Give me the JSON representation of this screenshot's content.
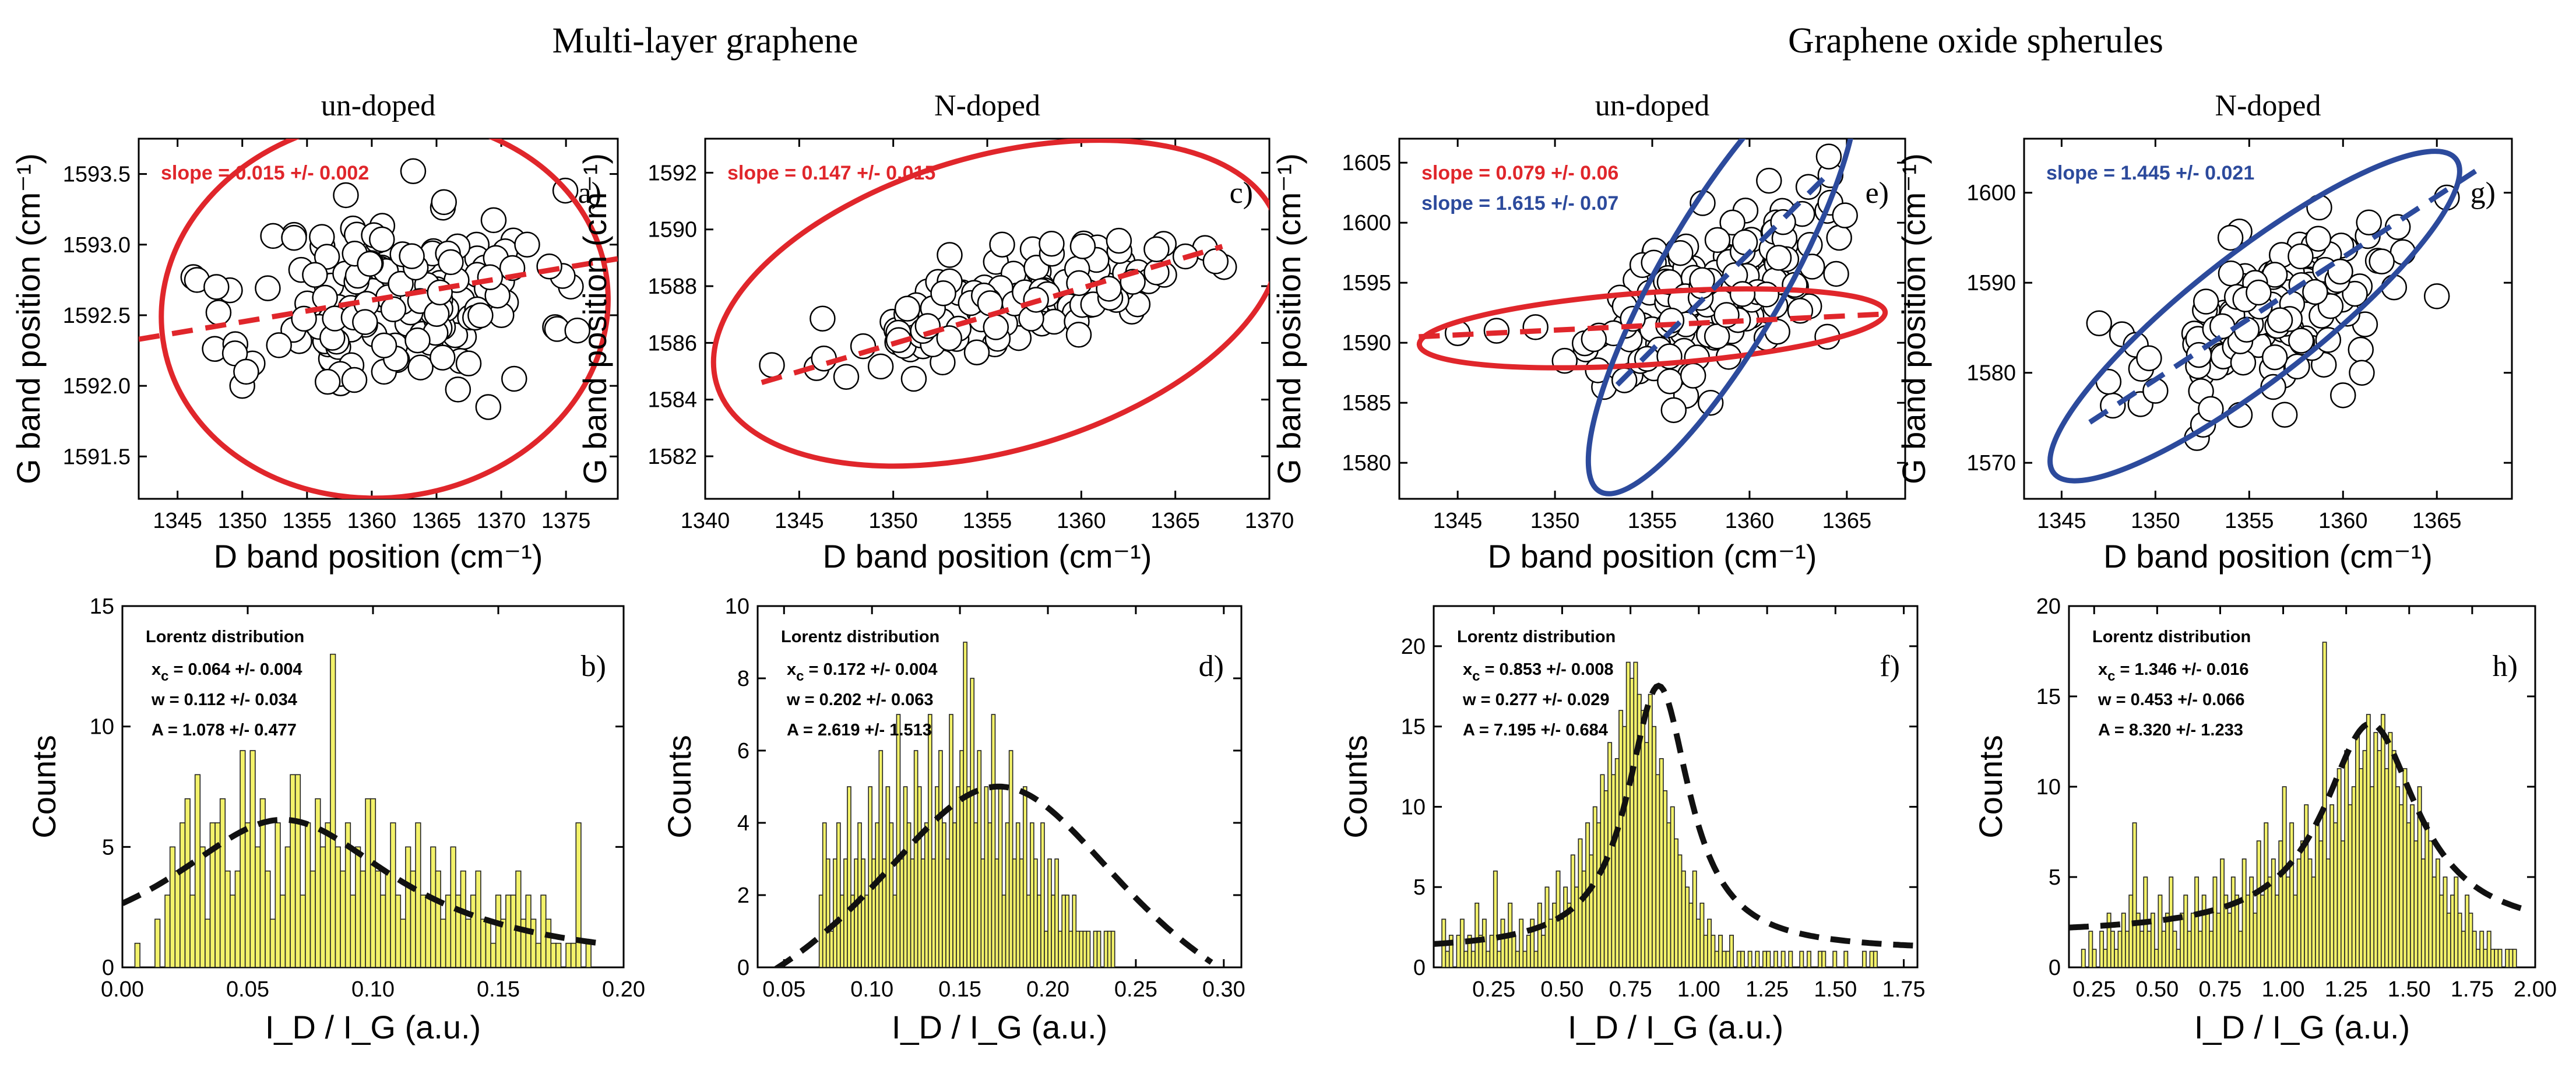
{
  "figure": {
    "group_titles": [
      "Multi-layer graphene",
      "Graphene oxide spherules"
    ],
    "colors": {
      "red": "#e0262b",
      "blue": "#2c4a9c",
      "bar_fill": "#f3f26a",
      "bar_edge": "#222222",
      "fit": "#111111"
    }
  },
  "chart_data": [
    {
      "type": "scatter",
      "panel": "a)",
      "group": "Multi-layer graphene",
      "subtitle": "un-doped",
      "xlabel": "D band position (cm⁻¹)",
      "ylabel": "G band position (cm⁻¹)",
      "xlim": [
        1342,
        1379
      ],
      "ylim": [
        1591.2,
        1593.75
      ],
      "xticks": [
        1345,
        1350,
        1355,
        1360,
        1365,
        1370,
        1375
      ],
      "yticks": [
        1591.5,
        1592.0,
        1592.5,
        1593.0,
        1593.5
      ],
      "ytick_labels": [
        "1591.5",
        "1592.0",
        "1592.5",
        "1593.0",
        "1593.5"
      ],
      "annotations": [
        {
          "text": "slope = 0.015 +/- 0.002",
          "color": "#e0262b"
        }
      ],
      "fit_lines": [
        {
          "color": "#e0262b",
          "x": [
            1342,
            1379
          ],
          "y": [
            1592.33,
            1592.9
          ]
        }
      ],
      "ellipses": [
        {
          "color": "#e0262b",
          "cx": 1361,
          "cy": 1592.55,
          "rx": 17.3,
          "ry": 0.67,
          "angle_deg": 8
        }
      ],
      "points": {
        "n": 160,
        "seed": 11,
        "cx": 1362,
        "cy": 1592.62,
        "sx": 5.6,
        "sy": 0.33,
        "corr": 0.15,
        "extra": [
          [
            1346.5,
            1592.75
          ],
          [
            1348,
            1592.7
          ],
          [
            1350,
            1592.0
          ],
          [
            1350.3,
            1592.1
          ],
          [
            1369,
            1591.85
          ],
          [
            1371,
            1592.05
          ],
          [
            1358,
            1593.35
          ],
          [
            1372,
            1593.0
          ]
        ]
      }
    },
    {
      "type": "scatter",
      "panel": "c)",
      "group": "Multi-layer graphene",
      "subtitle": "N-doped",
      "xlabel": "D band position (cm⁻¹)",
      "ylabel": "G band position (cm⁻¹)",
      "xlim": [
        1340,
        1370
      ],
      "ylim": [
        1580.5,
        1593.2
      ],
      "xticks": [
        1340,
        1345,
        1350,
        1355,
        1360,
        1365,
        1370
      ],
      "yticks": [
        1582,
        1584,
        1586,
        1588,
        1590,
        1592
      ],
      "ytick_labels": [
        "1582",
        "1584",
        "1586",
        "1588",
        "1590",
        "1592"
      ],
      "annotations": [
        {
          "text": "slope = 0.147 +/- 0.015",
          "color": "#e0262b"
        }
      ],
      "fit_lines": [
        {
          "color": "#e0262b",
          "x": [
            1343,
            1367.5
          ],
          "y": [
            1584.6,
            1589.4
          ]
        }
      ],
      "ellipses": [
        {
          "color": "#e0262b",
          "cx": 1355.5,
          "cy": 1587.4,
          "rx": 15.5,
          "ry": 2.6,
          "angle_deg": 16
        }
      ],
      "points": {
        "n": 120,
        "seed": 23,
        "cx": 1356,
        "cy": 1587.3,
        "sx": 4.6,
        "sy": 1.0,
        "corr": 0.7,
        "extra": [
          [
            1353,
            1589.1
          ],
          [
            1362,
            1589.6
          ],
          [
            1364,
            1589.3
          ],
          [
            1347.5,
            1584.8
          ]
        ]
      }
    },
    {
      "type": "scatter",
      "panel": "e)",
      "group": "Graphene oxide spherules",
      "subtitle": "un-doped",
      "xlabel": "D band position (cm⁻¹)",
      "ylabel": "G band position (cm⁻¹)",
      "xlim": [
        1342,
        1368
      ],
      "ylim": [
        1577,
        1607
      ],
      "xticks": [
        1345,
        1350,
        1355,
        1360,
        1365
      ],
      "yticks": [
        1580,
        1585,
        1590,
        1595,
        1600,
        1605
      ],
      "ytick_labels": [
        "1580",
        "1585",
        "1590",
        "1595",
        "1600",
        "1605"
      ],
      "annotations": [
        {
          "text": "slope = 0.079 +/- 0.06",
          "color": "#e0262b"
        },
        {
          "text": "slope = 1.615 +/- 0.07",
          "color": "#2c4a9c"
        }
      ],
      "fit_lines": [
        {
          "color": "#e0262b",
          "x": [
            1343,
            1367
          ],
          "y": [
            1590.5,
            1592.4
          ]
        },
        {
          "color": "#2c4a9c",
          "x": [
            1353.2,
            1364
          ],
          "y": [
            1586.5,
            1604.0
          ]
        }
      ],
      "ellipses": [
        {
          "color": "#e0262b",
          "cx": 1355,
          "cy": 1591.2,
          "rx": 12.0,
          "ry": 1.5,
          "angle_deg": 4
        },
        {
          "color": "#2c4a9c",
          "cx": 1358.6,
          "cy": 1595.3,
          "rx": 12.6,
          "ry": 2.6,
          "angle_deg": 60
        }
      ],
      "points": {
        "n": 150,
        "seed": 37,
        "cx": 1358.2,
        "cy": 1594.2,
        "sx": 2.8,
        "sy": 4.2,
        "corr": 0.62,
        "extra": [
          [
            1345,
            1590.8
          ],
          [
            1347,
            1591.0
          ],
          [
            1349,
            1591.3
          ],
          [
            1350.5,
            1588.5
          ],
          [
            1352,
            1590.3
          ],
          [
            1358,
            1585
          ],
          [
            1361,
            1603.5
          ],
          [
            1364,
            1590.5
          ],
          [
            1354,
            1592
          ]
        ]
      }
    },
    {
      "type": "scatter",
      "panel": "g)",
      "group": "Graphene oxide spherules",
      "subtitle": "N-doped",
      "xlabel": "D band position (cm⁻¹)",
      "ylabel": "G band position (cm⁻¹)",
      "xlim": [
        1343,
        1369
      ],
      "ylim": [
        1566,
        1606
      ],
      "xticks": [
        1345,
        1350,
        1355,
        1360,
        1365
      ],
      "yticks": [
        1570,
        1580,
        1590,
        1600
      ],
      "ytick_labels": [
        "1570",
        "1580",
        "1590",
        "1600"
      ],
      "annotations": [
        {
          "text": "slope = 1.445 +/- 0.021",
          "color": "#2c4a9c"
        }
      ],
      "fit_lines": [
        {
          "color": "#2c4a9c",
          "x": [
            1346.5,
            1367.5
          ],
          "y": [
            1574.5,
            1603.0
          ]
        }
      ],
      "ellipses": [
        {
          "color": "#2c4a9c",
          "cx": 1355.3,
          "cy": 1586.3,
          "rx": 13.6,
          "ry": 3.5,
          "angle_deg": 38
        }
      ],
      "points": {
        "n": 140,
        "seed": 53,
        "cx": 1356.5,
        "cy": 1587,
        "sx": 3.3,
        "sy": 5.3,
        "corr": 0.6,
        "extra": [
          [
            1347,
            1585.5
          ],
          [
            1347.5,
            1579
          ],
          [
            1350,
            1578
          ],
          [
            1354,
            1595
          ],
          [
            1365,
            1588.5
          ],
          [
            1361,
            1580
          ],
          [
            1360,
            1577.5
          ]
        ]
      }
    },
    {
      "type": "bar",
      "panel": "b)",
      "group": "Multi-layer graphene",
      "xlabel": "I_D / I_G (a.u.)",
      "ylabel": "Counts",
      "xlim": [
        0.0,
        0.2
      ],
      "ylim": [
        0,
        15
      ],
      "xticks": [
        0.0,
        0.05,
        0.1,
        0.15,
        0.2
      ],
      "xtick_labels": [
        "0.00",
        "0.05",
        "0.10",
        "0.15",
        "0.20"
      ],
      "yticks": [
        0,
        5,
        10,
        15
      ],
      "title": "Lorentz distribution",
      "params": {
        "xc": "0.064 +/- 0.004",
        "w": "0.112 +/- 0.034",
        "A": "1.078 +/- 0.477"
      },
      "bins": {
        "start": 0.005,
        "width": 0.002
      },
      "values": [
        1,
        0,
        0,
        0,
        2,
        0,
        3,
        5,
        4,
        6,
        7,
        3,
        8,
        5,
        2,
        6,
        6,
        7,
        4,
        3,
        4,
        9,
        6,
        9,
        5,
        7,
        4,
        2,
        6,
        3,
        5,
        8,
        8,
        3,
        6,
        4,
        7,
        5,
        6,
        13,
        5,
        4,
        6,
        3,
        5,
        4,
        7,
        7,
        4,
        3,
        4,
        6,
        3,
        2,
        5,
        4,
        6,
        3,
        3,
        5,
        4,
        2,
        3,
        5,
        3,
        4,
        2,
        3,
        4,
        2,
        2,
        1,
        3,
        2,
        3,
        3,
        4,
        2,
        3,
        2,
        1,
        3,
        2,
        1,
        1,
        0,
        1,
        1,
        6,
        0,
        1
      ],
      "fit": {
        "type": "lorentz",
        "xc": 0.064,
        "w": 0.112,
        "A": 1.078,
        "y0": 0.0,
        "x_range": [
          0.0,
          0.19
        ]
      }
    },
    {
      "type": "bar",
      "panel": "d)",
      "group": "Multi-layer graphene",
      "xlabel": "I_D / I_G (a.u.)",
      "ylabel": "Counts",
      "xlim": [
        0.035,
        0.31
      ],
      "ylim": [
        0,
        10
      ],
      "xticks": [
        0.05,
        0.1,
        0.15,
        0.2,
        0.25,
        0.3
      ],
      "xtick_labels": [
        "0.05",
        "0.10",
        "0.15",
        "0.20",
        "0.25",
        "0.30"
      ],
      "yticks": [
        0,
        2,
        4,
        6,
        8,
        10
      ],
      "title": "Lorentz  distribution",
      "params": {
        "xc": "0.172 +/- 0.004",
        "w": "0.202 +/- 0.063",
        "A": "2.619 +/- 1.513"
      },
      "bins": {
        "start": 0.07,
        "width": 0.002
      },
      "values": [
        2,
        4,
        3,
        1,
        3,
        4,
        2,
        3,
        5,
        2,
        3,
        4,
        3,
        2,
        5,
        3,
        4,
        6,
        3,
        5,
        4,
        2,
        7,
        3,
        5,
        4,
        3,
        6,
        5,
        3,
        4,
        7,
        3,
        5,
        6,
        4,
        3,
        7,
        4,
        5,
        6,
        9,
        5,
        8,
        4,
        6,
        3,
        5,
        4,
        7,
        3,
        5,
        2,
        4,
        6,
        3,
        4,
        3,
        5,
        2,
        4,
        3,
        2,
        4,
        1,
        3,
        2,
        3,
        1,
        2,
        2,
        1,
        2,
        1,
        1,
        1,
        1,
        0,
        1,
        1,
        0,
        1,
        1,
        1
      ],
      "fit": {
        "type": "lorentz",
        "xc": 0.172,
        "w": 0.202,
        "A": 2.619,
        "y0": -3.25,
        "x_range": [
          0.045,
          0.293
        ]
      }
    },
    {
      "type": "bar",
      "panel": "f)",
      "group": "Graphene oxide spherules",
      "xlabel": "I_D / I_G (a.u.)",
      "ylabel": "Counts",
      "xlim": [
        0.03,
        1.8
      ],
      "ylim": [
        0,
        22.5
      ],
      "xticks": [
        0.25,
        0.5,
        0.75,
        1.0,
        1.25,
        1.5,
        1.75
      ],
      "xtick_labels": [
        "0.25",
        "0.50",
        "0.75",
        "1.00",
        "1.25",
        "1.50",
        "1.75"
      ],
      "yticks": [
        0,
        5,
        10,
        15,
        20
      ],
      "title": "Lorentz distribution",
      "params": {
        "xc": "0.853 +/- 0.008",
        "w": "0.277 +/- 0.029",
        "A": "7.195 +/- 0.684"
      },
      "bins": {
        "start": 0.06,
        "width": 0.0135
      },
      "values": [
        3,
        1,
        2,
        0,
        2,
        3,
        1,
        2,
        1,
        4,
        2,
        3,
        1,
        2,
        6,
        1,
        3,
        2,
        4,
        2,
        1,
        3,
        1,
        2,
        3,
        1,
        4,
        2,
        5,
        3,
        4,
        6,
        3,
        5,
        4,
        7,
        5,
        8,
        6,
        9,
        7,
        10,
        9,
        12,
        11,
        14,
        12,
        13,
        16,
        15,
        19,
        18,
        19,
        17,
        16,
        14,
        17,
        15,
        12,
        13,
        11,
        9,
        10,
        8,
        7,
        6,
        5,
        4,
        6,
        3,
        4,
        2,
        3,
        2,
        1,
        2,
        1,
        1,
        2,
        0,
        1,
        1,
        0,
        1,
        0,
        1,
        0,
        1,
        1,
        0,
        1,
        0,
        1,
        0,
        1,
        0,
        0,
        1,
        0,
        1,
        0,
        0,
        1,
        1,
        0,
        0,
        1,
        0,
        0,
        1,
        0,
        0,
        0,
        0,
        1,
        0,
        1,
        1
      ],
      "fit": {
        "type": "lorentz",
        "xc": 0.853,
        "w": 0.277,
        "A": 7.195,
        "y0": 1.0,
        "x_range": [
          0.03,
          1.8
        ]
      }
    },
    {
      "type": "bar",
      "panel": "h)",
      "group": "Graphene oxide spherules",
      "xlabel": "I_D / I_G (a.u.)",
      "ylabel": "Counts",
      "xlim": [
        0.15,
        2.0
      ],
      "ylim": [
        0,
        20
      ],
      "xticks": [
        0.25,
        0.5,
        0.75,
        1.0,
        1.25,
        1.5,
        1.75,
        2.0
      ],
      "xtick_labels": [
        "0.25",
        "0.50",
        "0.75",
        "1.00",
        "1.25",
        "1.50",
        "1.75",
        "2.00"
      ],
      "yticks": [
        0,
        5,
        10,
        15,
        20
      ],
      "title": "Lorentz distribution",
      "params": {
        "xc": "1.346 +/- 0.016",
        "w": "0.453 +/- 0.066",
        "A": "8.320 +/- 1.233"
      },
      "bins": {
        "start": 0.2,
        "width": 0.0145
      },
      "values": [
        1,
        0,
        2,
        1,
        0,
        2,
        1,
        3,
        2,
        1,
        2,
        3,
        2,
        4,
        8,
        3,
        2,
        5,
        2,
        3,
        1,
        4,
        2,
        3,
        5,
        2,
        1,
        3,
        4,
        2,
        3,
        5,
        2,
        4,
        3,
        2,
        5,
        3,
        6,
        4,
        3,
        5,
        4,
        2,
        6,
        4,
        5,
        3,
        7,
        4,
        8,
        5,
        6,
        4,
        7,
        10,
        5,
        8,
        4,
        6,
        7,
        9,
        6,
        5,
        8,
        7,
        18,
        6,
        9,
        8,
        11,
        7,
        12,
        9,
        10,
        13,
        11,
        12,
        14,
        10,
        13,
        12,
        14,
        11,
        13,
        12,
        10,
        9,
        11,
        8,
        9,
        7,
        10,
        6,
        8,
        7,
        5,
        6,
        4,
        5,
        3,
        4,
        5,
        3,
        2,
        4,
        3,
        2,
        1,
        2,
        1,
        2,
        1,
        1,
        1,
        0,
        1,
        1,
        1
      ],
      "fit": {
        "type": "lorentz",
        "xc": 1.346,
        "w": 0.453,
        "A": 8.32,
        "y0": 1.8,
        "x_range": [
          0.15,
          1.95
        ]
      }
    }
  ]
}
